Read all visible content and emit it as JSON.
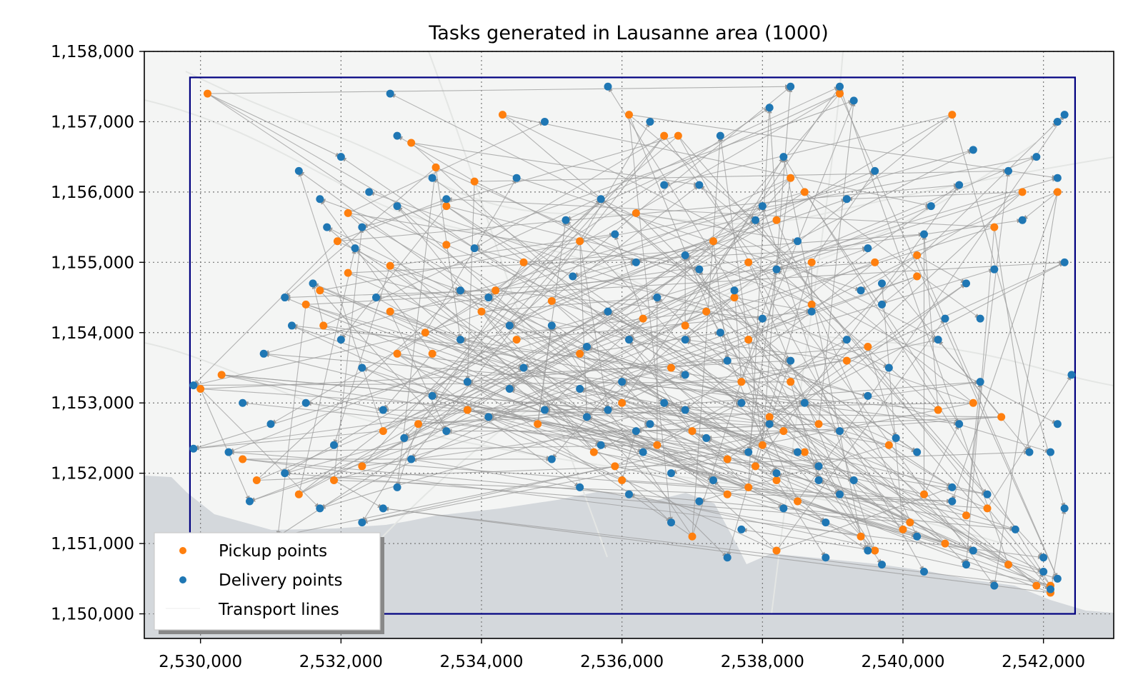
{
  "chart_data": {
    "type": "scatter",
    "title": "Tasks generated in Lausanne area (1000)",
    "xlabel": "",
    "ylabel": "",
    "xlim": [
      2529200,
      2543000
    ],
    "ylim": [
      1149650,
      1158000
    ],
    "x_ticks": [
      2530000,
      2532000,
      2534000,
      2536000,
      2538000,
      2540000,
      2542000
    ],
    "x_tick_labels": [
      "2,530,000",
      "2,532,000",
      "2,534,000",
      "2,536,000",
      "2,538,000",
      "2,540,000",
      "2,542,000"
    ],
    "y_ticks": [
      1150000,
      1151000,
      1152000,
      1153000,
      1154000,
      1155000,
      1156000,
      1157000,
      1158000
    ],
    "y_tick_labels": [
      "1,150,000",
      "1,151,000",
      "1,152,000",
      "1,153,000",
      "1,154,000",
      "1,155,000",
      "1,156,000",
      "1,157,000",
      "1,158,000"
    ],
    "grid": true,
    "legend_position": "bottom-left",
    "bounding_box": {
      "x": [
        2529850,
        2542450
      ],
      "y": [
        1150000,
        1157630
      ]
    },
    "colors": {
      "pickup": "#ff7f0e",
      "delivery": "#1f77b4",
      "lines": "#999999",
      "bbox": "#000080",
      "lake": "#d4d8dc",
      "land": "#f4f5f4"
    },
    "series": [
      {
        "name": "Pickup points",
        "points": [
          [
            2530100,
            1157400
          ],
          [
            2531500,
            1154400
          ],
          [
            2531700,
            1154600
          ],
          [
            2531750,
            1154100
          ],
          [
            2532100,
            1155700
          ],
          [
            2531950,
            1155300
          ],
          [
            2532100,
            1154850
          ],
          [
            2532700,
            1154300
          ],
          [
            2533350,
            1156350
          ],
          [
            2533500,
            1155250
          ],
          [
            2533500,
            1155800
          ],
          [
            2533900,
            1156150
          ],
          [
            2534200,
            1154600
          ],
          [
            2534000,
            1154300
          ],
          [
            2534600,
            1155000
          ],
          [
            2535000,
            1154450
          ],
          [
            2536100,
            1157100
          ],
          [
            2536600,
            1156800
          ],
          [
            2536000,
            1153000
          ],
          [
            2535400,
            1153700
          ],
          [
            2536300,
            1154200
          ],
          [
            2536700,
            1153500
          ],
          [
            2537000,
            1152600
          ],
          [
            2537500,
            1152200
          ],
          [
            2538000,
            1152400
          ],
          [
            2538100,
            1152800
          ],
          [
            2538300,
            1152600
          ],
          [
            2537800,
            1151800
          ],
          [
            2538500,
            1151600
          ],
          [
            2537900,
            1152100
          ],
          [
            2538200,
            1151900
          ],
          [
            2538600,
            1152300
          ],
          [
            2537700,
            1153300
          ],
          [
            2538800,
            1152700
          ],
          [
            2539200,
            1153600
          ],
          [
            2539500,
            1153800
          ],
          [
            2539400,
            1151100
          ],
          [
            2540000,
            1151200
          ],
          [
            2540300,
            1151700
          ],
          [
            2540100,
            1151300
          ],
          [
            2540600,
            1151000
          ],
          [
            2540900,
            1151400
          ],
          [
            2541500,
            1150700
          ],
          [
            2541900,
            1150400
          ],
          [
            2542100,
            1150300
          ],
          [
            2542100,
            1150400
          ],
          [
            2541300,
            1155500
          ],
          [
            2540200,
            1155100
          ],
          [
            2540200,
            1154800
          ],
          [
            2538400,
            1156200
          ],
          [
            2538600,
            1156000
          ],
          [
            2538200,
            1155600
          ],
          [
            2539100,
            1157400
          ],
          [
            2541000,
            1153000
          ],
          [
            2540500,
            1152900
          ],
          [
            2539800,
            1152400
          ],
          [
            2541400,
            1152800
          ],
          [
            2541200,
            1151500
          ],
          [
            2537600,
            1154500
          ],
          [
            2537200,
            1154300
          ],
          [
            2536900,
            1154100
          ],
          [
            2536200,
            1155700
          ],
          [
            2535400,
            1155300
          ],
          [
            2534500,
            1153900
          ],
          [
            2533800,
            1152900
          ],
          [
            2533100,
            1152700
          ],
          [
            2532600,
            1152600
          ],
          [
            2532300,
            1152100
          ],
          [
            2531900,
            1151900
          ],
          [
            2531400,
            1151700
          ],
          [
            2530800,
            1151900
          ],
          [
            2530300,
            1153400
          ],
          [
            2530000,
            1153200
          ],
          [
            2530600,
            1152200
          ],
          [
            2532800,
            1153700
          ],
          [
            2533200,
            1154000
          ],
          [
            2534800,
            1152700
          ],
          [
            2535900,
            1152100
          ],
          [
            2537000,
            1151100
          ],
          [
            2538200,
            1150900
          ],
          [
            2536000,
            1151900
          ],
          [
            2536500,
            1152400
          ],
          [
            2538700,
            1154400
          ],
          [
            2537800,
            1153900
          ],
          [
            2539600,
            1150900
          ],
          [
            2537300,
            1155300
          ],
          [
            2537800,
            1155000
          ],
          [
            2538700,
            1155000
          ],
          [
            2536800,
            1156800
          ],
          [
            2539600,
            1155000
          ],
          [
            2541700,
            1156000
          ],
          [
            2540700,
            1157100
          ],
          [
            2542200,
            1156000
          ],
          [
            2533000,
            1156700
          ],
          [
            2532700,
            1154950
          ],
          [
            2533300,
            1153700
          ],
          [
            2534300,
            1157100
          ],
          [
            2535600,
            1152300
          ],
          [
            2537500,
            1151700
          ],
          [
            2538400,
            1153300
          ]
        ]
      },
      {
        "name": "Delivery points",
        "points": [
          [
            2529900,
            1153250
          ],
          [
            2529900,
            1152350
          ],
          [
            2530400,
            1152300
          ],
          [
            2530700,
            1151600
          ],
          [
            2531200,
            1152000
          ],
          [
            2530900,
            1153700
          ],
          [
            2531300,
            1154100
          ],
          [
            2531200,
            1154500
          ],
          [
            2531600,
            1154700
          ],
          [
            2531400,
            1156300
          ],
          [
            2531700,
            1155900
          ],
          [
            2532000,
            1156500
          ],
          [
            2532400,
            1156000
          ],
          [
            2532700,
            1157400
          ],
          [
            2532800,
            1156800
          ],
          [
            2533300,
            1156200
          ],
          [
            2532200,
            1155200
          ],
          [
            2532500,
            1154500
          ],
          [
            2532300,
            1153500
          ],
          [
            2532600,
            1152900
          ],
          [
            2532900,
            1152500
          ],
          [
            2532300,
            1151300
          ],
          [
            2532600,
            1151500
          ],
          [
            2531700,
            1151500
          ],
          [
            2531100,
            1151100
          ],
          [
            2533300,
            1153100
          ],
          [
            2533700,
            1153900
          ],
          [
            2534100,
            1154500
          ],
          [
            2533900,
            1155200
          ],
          [
            2533500,
            1155900
          ],
          [
            2534500,
            1156200
          ],
          [
            2534900,
            1157000
          ],
          [
            2535800,
            1157500
          ],
          [
            2536400,
            1157000
          ],
          [
            2536600,
            1156100
          ],
          [
            2535900,
            1155400
          ],
          [
            2535300,
            1154800
          ],
          [
            2535000,
            1154100
          ],
          [
            2534600,
            1153500
          ],
          [
            2534100,
            1152800
          ],
          [
            2535000,
            1152200
          ],
          [
            2535700,
            1152400
          ],
          [
            2535400,
            1153200
          ],
          [
            2536100,
            1153900
          ],
          [
            2536500,
            1154500
          ],
          [
            2537100,
            1154900
          ],
          [
            2537400,
            1154000
          ],
          [
            2536900,
            1153400
          ],
          [
            2536400,
            1152700
          ],
          [
            2536700,
            1152000
          ],
          [
            2537100,
            1151600
          ],
          [
            2537700,
            1151200
          ],
          [
            2538300,
            1151500
          ],
          [
            2538800,
            1151900
          ],
          [
            2538100,
            1152700
          ],
          [
            2537700,
            1153000
          ],
          [
            2538400,
            1153600
          ],
          [
            2538700,
            1154300
          ],
          [
            2538200,
            1154900
          ],
          [
            2537900,
            1155600
          ],
          [
            2538300,
            1156500
          ],
          [
            2538100,
            1157200
          ],
          [
            2539100,
            1157500
          ],
          [
            2539300,
            1157300
          ],
          [
            2538400,
            1157500
          ],
          [
            2539200,
            1155900
          ],
          [
            2539500,
            1155200
          ],
          [
            2539700,
            1154400
          ],
          [
            2539200,
            1153900
          ],
          [
            2539500,
            1153100
          ],
          [
            2539900,
            1152500
          ],
          [
            2539300,
            1151900
          ],
          [
            2538900,
            1151300
          ],
          [
            2539500,
            1150900
          ],
          [
            2540200,
            1151100
          ],
          [
            2540700,
            1151600
          ],
          [
            2540200,
            1152300
          ],
          [
            2540800,
            1152700
          ],
          [
            2541100,
            1153300
          ],
          [
            2540500,
            1153900
          ],
          [
            2540900,
            1154700
          ],
          [
            2540300,
            1155400
          ],
          [
            2540800,
            1156100
          ],
          [
            2541000,
            1156600
          ],
          [
            2541500,
            1156300
          ],
          [
            2541900,
            1156500
          ],
          [
            2542200,
            1157000
          ],
          [
            2542300,
            1157100
          ],
          [
            2542400,
            1153400
          ],
          [
            2542200,
            1152700
          ],
          [
            2542100,
            1152300
          ],
          [
            2542300,
            1151500
          ],
          [
            2542000,
            1150800
          ],
          [
            2541600,
            1151200
          ],
          [
            2541200,
            1151700
          ],
          [
            2540700,
            1151800
          ],
          [
            2541800,
            1152300
          ],
          [
            2541000,
            1150900
          ],
          [
            2542200,
            1150500
          ],
          [
            2542000,
            1150600
          ],
          [
            2542100,
            1150350
          ],
          [
            2542300,
            1155000
          ],
          [
            2542200,
            1156200
          ],
          [
            2541700,
            1155600
          ],
          [
            2541300,
            1154900
          ],
          [
            2541100,
            1154200
          ],
          [
            2540600,
            1154200
          ],
          [
            2539800,
            1153500
          ],
          [
            2539700,
            1154700
          ],
          [
            2540400,
            1155800
          ],
          [
            2539600,
            1156300
          ],
          [
            2537400,
            1156800
          ],
          [
            2537100,
            1156100
          ],
          [
            2536900,
            1155100
          ],
          [
            2536200,
            1155000
          ],
          [
            2535800,
            1154300
          ],
          [
            2535500,
            1153800
          ],
          [
            2536000,
            1153300
          ],
          [
            2536600,
            1153000
          ],
          [
            2537200,
            1152500
          ],
          [
            2537500,
            1153600
          ],
          [
            2538000,
            1154200
          ],
          [
            2538600,
            1153000
          ],
          [
            2539100,
            1152600
          ],
          [
            2538500,
            1152300
          ],
          [
            2538900,
            1150800
          ],
          [
            2539700,
            1150700
          ],
          [
            2540300,
            1150600
          ],
          [
            2541300,
            1150400
          ],
          [
            2540900,
            1150700
          ],
          [
            2537300,
            1151900
          ],
          [
            2536900,
            1152900
          ],
          [
            2536200,
            1152600
          ],
          [
            2535800,
            1152900
          ],
          [
            2535500,
            1152800
          ],
          [
            2534900,
            1152900
          ],
          [
            2534400,
            1153200
          ],
          [
            2533800,
            1153300
          ],
          [
            2533500,
            1152600
          ],
          [
            2533000,
            1152200
          ],
          [
            2532800,
            1151800
          ],
          [
            2531900,
            1152400
          ],
          [
            2531500,
            1153000
          ],
          [
            2531000,
            1152700
          ],
          [
            2530600,
            1153000
          ],
          [
            2532000,
            1153900
          ],
          [
            2531800,
            1155500
          ],
          [
            2532300,
            1155500
          ],
          [
            2532800,
            1155800
          ],
          [
            2533700,
            1154600
          ],
          [
            2534400,
            1154100
          ],
          [
            2535200,
            1155600
          ],
          [
            2535700,
            1155900
          ],
          [
            2536900,
            1153900
          ],
          [
            2537800,
            1152300
          ],
          [
            2538200,
            1152000
          ],
          [
            2538800,
            1152100
          ],
          [
            2539100,
            1151700
          ],
          [
            2537500,
            1150800
          ],
          [
            2536700,
            1151300
          ],
          [
            2536100,
            1151700
          ],
          [
            2535400,
            1151800
          ],
          [
            2536300,
            1152300
          ],
          [
            2537600,
            1154600
          ],
          [
            2538500,
            1155300
          ],
          [
            2539400,
            1154600
          ],
          [
            2538000,
            1155800
          ]
        ]
      }
    ],
    "legend": [
      "Pickup points",
      "Delivery points",
      "Transport lines"
    ]
  }
}
